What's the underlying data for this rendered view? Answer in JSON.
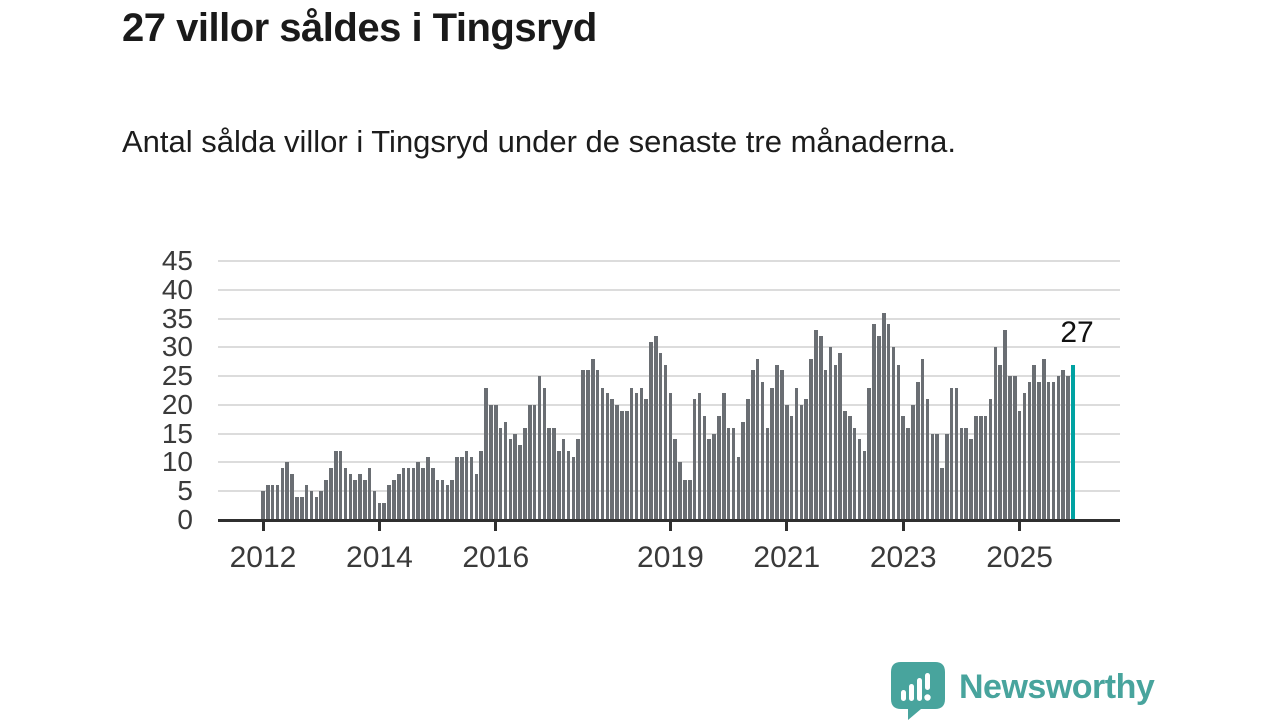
{
  "header": {
    "title": "27 villor såldes i Tingsryd",
    "subtitle": "Antal sålda villor i Tingsryd under de senaste tre månaderna."
  },
  "annotation": {
    "label": "27"
  },
  "chart_data": {
    "type": "bar",
    "title": "27 villor såldes i Tingsryd",
    "subtitle": "Antal sålda villor i Tingsryd under de senaste tre månaderna.",
    "frequency": "monthly",
    "start_month": "2012-01",
    "xlabel": "",
    "ylabel": "",
    "ylim": [
      0,
      45
    ],
    "grid": true,
    "y_ticks": [
      0,
      5,
      10,
      15,
      20,
      25,
      30,
      35,
      40,
      45
    ],
    "x_tick_labels": [
      "2012",
      "2014",
      "2016",
      "2019",
      "2021",
      "2023",
      "2025"
    ],
    "values": [
      5,
      6,
      6,
      6,
      9,
      10,
      8,
      4,
      4,
      6,
      5,
      4,
      5,
      7,
      9,
      12,
      12,
      9,
      8,
      7,
      8,
      7,
      9,
      5,
      3,
      3,
      6,
      7,
      8,
      9,
      9,
      9,
      10,
      9,
      11,
      9,
      7,
      7,
      6,
      7,
      11,
      11,
      12,
      11,
      8,
      12,
      23,
      20,
      20,
      16,
      17,
      14,
      15,
      13,
      16,
      20,
      20,
      25,
      23,
      16,
      16,
      12,
      14,
      12,
      11,
      14,
      26,
      26,
      28,
      26,
      23,
      22,
      21,
      20,
      19,
      19,
      23,
      22,
      23,
      21,
      31,
      32,
      29,
      27,
      22,
      14,
      10,
      7,
      7,
      21,
      22,
      18,
      14,
      15,
      18,
      22,
      16,
      16,
      11,
      17,
      21,
      26,
      28,
      24,
      16,
      23,
      27,
      26,
      20,
      18,
      23,
      20,
      21,
      28,
      33,
      32,
      26,
      30,
      27,
      29,
      19,
      18,
      16,
      14,
      12,
      23,
      34,
      32,
      36,
      34,
      30,
      27,
      18,
      16,
      20,
      24,
      28,
      21,
      15,
      15,
      9,
      15,
      23,
      23,
      16,
      16,
      14,
      18,
      18,
      18,
      21,
      30,
      27,
      33,
      25,
      25,
      19,
      22,
      24,
      27,
      24,
      28,
      24,
      24,
      25,
      26,
      25,
      27
    ],
    "highlight_last_bar": true,
    "highlight_value": 27,
    "bar_color": "#6a6e73",
    "highlight_color": "#00a2a2",
    "gridline_color": "#dcdcdc",
    "axis_color": "#2f2f2f"
  },
  "branding": {
    "name": "Newsworthy",
    "color": "#48a49d",
    "icon": "bar-chart-speech-bubble-icon"
  }
}
